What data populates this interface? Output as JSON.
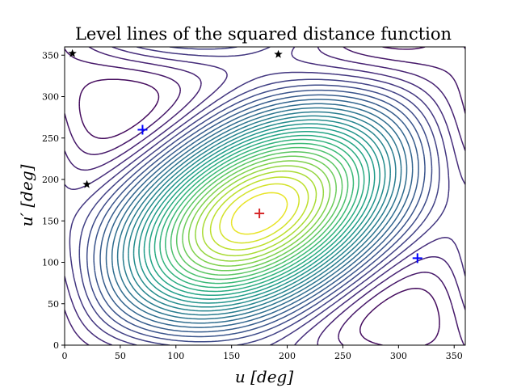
{
  "chart_data": {
    "type": "contour",
    "title": "Level lines of the squared distance function",
    "xlabel": "u [deg]",
    "ylabel": "u′ [deg]",
    "xlim": [
      0,
      360
    ],
    "ylim": [
      0,
      360
    ],
    "xticks": [
      0,
      50,
      100,
      150,
      200,
      250,
      300,
      350
    ],
    "yticks": [
      0,
      50,
      100,
      150,
      200,
      250,
      300,
      350
    ],
    "colormap": "viridis",
    "contour_levels": 30,
    "grid": false,
    "markers": [
      {
        "name": "maximum",
        "symbol": "plus",
        "color": "#d62728",
        "x": 175,
        "y": 159
      },
      {
        "name": "local-minimum",
        "symbol": "plus",
        "color": "#0000ff",
        "x": 70,
        "y": 260
      },
      {
        "name": "local-minimum",
        "symbol": "plus",
        "color": "#0000ff",
        "x": 317,
        "y": 105
      },
      {
        "name": "saddle",
        "symbol": "star",
        "color": "#000000",
        "x": 7,
        "y": 352
      },
      {
        "name": "saddle",
        "symbol": "star",
        "color": "#000000",
        "x": 192,
        "y": 351
      },
      {
        "name": "saddle",
        "symbol": "star",
        "color": "#000000",
        "x": 20,
        "y": 194
      }
    ]
  }
}
